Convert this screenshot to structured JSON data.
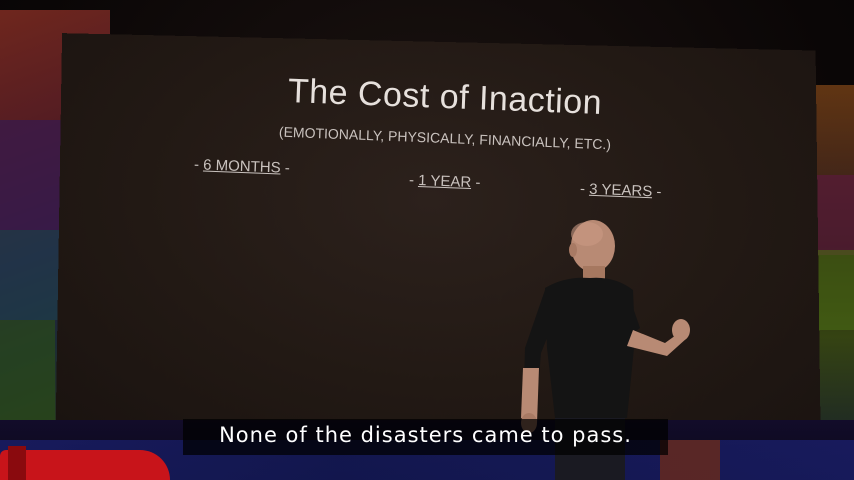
{
  "slide": {
    "title": "The Cost of Inaction",
    "subtitle": "(EMOTIONALLY, PHYSICALLY, FINANCIALLY, ETC.)",
    "timeframes": [
      "6 MONTHS",
      "1 YEAR",
      "3 YEARS"
    ]
  },
  "caption": {
    "text": "None of the disasters came to pass."
  },
  "colors": {
    "slide_text": "#e6e0dc",
    "caption_text": "#ffffff",
    "stage_red": "#c8141a",
    "stage_blue": "#1a1e6a"
  }
}
